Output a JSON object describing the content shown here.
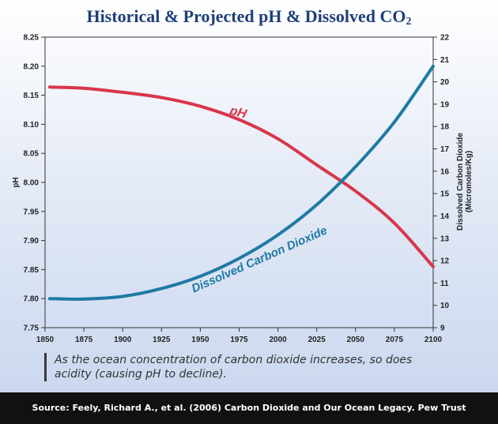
{
  "chart_data": {
    "type": "line",
    "title_main": "Historical & Projected pH & Dissolved CO",
    "title_sub": "2",
    "xlabel": "",
    "ylabel_left": "pH",
    "ylabel_right_line1": "Dissolved Carbon Dioxide",
    "ylabel_right_line2": "(Micromoles/Kg)",
    "xlim": [
      1850,
      2100
    ],
    "ylim_left": [
      7.75,
      8.25
    ],
    "ylim_right": [
      9,
      22
    ],
    "x_ticks": [
      "1850",
      "1875",
      "1900",
      "1925",
      "1950",
      "1975",
      "2000",
      "2025",
      "2050",
      "2075",
      "2100"
    ],
    "y_left_ticks": [
      "7.75",
      "7.80",
      "7.85",
      "7.90",
      "7.95",
      "8.00",
      "8.05",
      "8.10",
      "8.15",
      "8.20",
      "8.25"
    ],
    "y_right_ticks": [
      "9",
      "10",
      "11",
      "12",
      "13",
      "14",
      "15",
      "16",
      "17",
      "18",
      "19",
      "20",
      "21",
      "22"
    ],
    "series": [
      {
        "name": "pH",
        "axis": "left",
        "color": "#d9364a",
        "x": [
          1853,
          1875,
          1900,
          1925,
          1950,
          1975,
          2000,
          2025,
          2050,
          2075,
          2100
        ],
        "values": [
          8.164,
          8.162,
          8.155,
          8.146,
          8.131,
          8.108,
          8.075,
          8.03,
          7.985,
          7.93,
          7.855
        ]
      },
      {
        "name": "Dissolved Carbon Dioxide",
        "axis": "right",
        "color": "#1e7aa3",
        "x": [
          1853,
          1875,
          1900,
          1925,
          1950,
          1975,
          2000,
          2025,
          2050,
          2075,
          2100
        ],
        "values": [
          10.3,
          10.28,
          10.4,
          10.75,
          11.3,
          12.1,
          13.15,
          14.5,
          16.2,
          18.2,
          20.7
        ]
      }
    ],
    "annotations": [
      {
        "text": "pH",
        "series": "pH"
      },
      {
        "text": "Dissolved Carbon Dioxide",
        "series": "Dissolved Carbon Dioxide"
      }
    ]
  },
  "caption": "As the ocean concentration of carbon dioxide increases, so does acidity (causing pH to decline).",
  "footer": "Source: Feely, Richard A., et al. (2006) Carbon Dioxide and Our Ocean Legacy. Pew Trust",
  "colors": {
    "title": "#1f3f78",
    "ph": "#d9364a",
    "co2": "#1e7aa3"
  }
}
